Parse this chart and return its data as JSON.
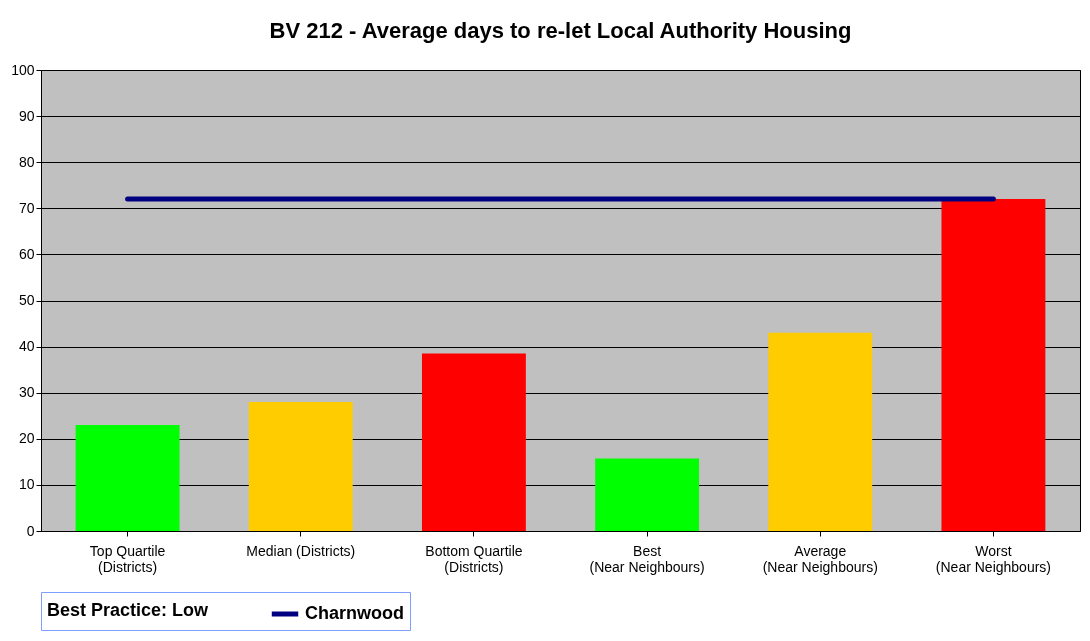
{
  "chart_data": {
    "type": "bar",
    "title": "BV 212 - Average days to re-let Local Authority Housing",
    "categories": [
      "Top Quartile (Districts)",
      "Median (Districts)",
      "Bottom Quartile (Districts)",
      "Best (Near Neighbours)",
      "Average (Near Neighbours)",
      "Worst (Near Neighbours)"
    ],
    "series": [
      {
        "values": [
          23,
          28,
          38.5,
          15.7,
          43,
          72
        ],
        "colors": [
          "#00ff00",
          "#ffcc00",
          "#ff0000",
          "#00ff00",
          "#ffcc00",
          "#ff0000"
        ]
      },
      {
        "type": "line",
        "name": "Charnwood",
        "color": "#000080",
        "values": [
          72,
          72,
          72,
          72,
          72,
          72
        ]
      }
    ],
    "ylim": [
      0,
      100
    ],
    "yticks": [
      0,
      10,
      20,
      30,
      40,
      50,
      60,
      70,
      80,
      90,
      100
    ],
    "grid": "y",
    "legend": "bottom",
    "annotations": [
      "Best Practice: Low"
    ]
  }
}
